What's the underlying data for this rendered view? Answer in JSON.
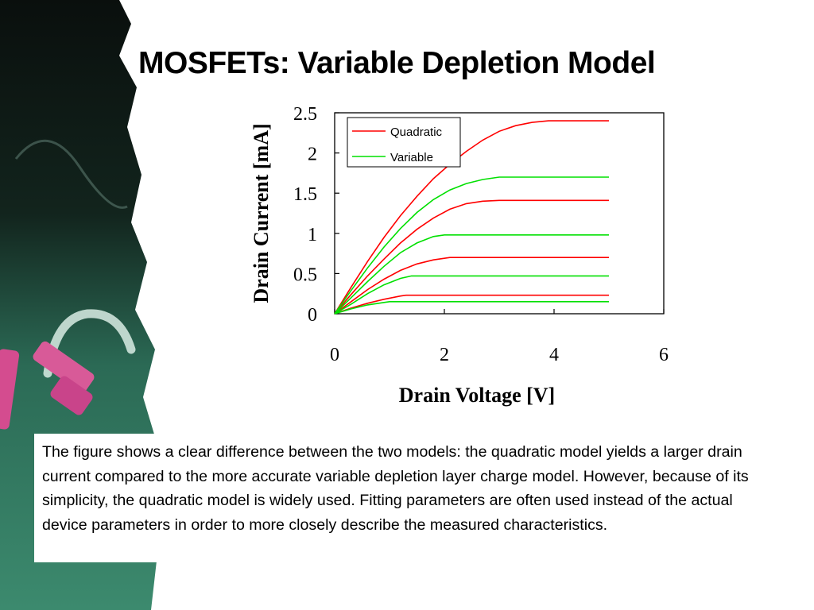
{
  "slide": {
    "title": "MOSFETs: Variable Depletion Model",
    "caption": "The figure shows a clear difference between the two models: the quadratic model yields a larger drain current compared to the more accurate variable depletion layer charge model. However, because of its simplicity, the quadratic model is widely used. Fitting parameters are often used instead of the actual device parameters in order to more closely describe the measured characteristics."
  },
  "colors": {
    "quadratic": "#ff0000",
    "variable": "#00e000",
    "chalkboard": "#1f5a48",
    "chalk_pink": "#d44c8f"
  },
  "chart_data": {
    "type": "line",
    "xlabel": "Drain Voltage [V]",
    "ylabel": "Drain Current [mA]",
    "xlim": [
      0,
      6
    ],
    "ylim": [
      0,
      2.5
    ],
    "xticks": [
      "0",
      "2",
      "4",
      "6"
    ],
    "yticks": [
      "0",
      "0.5",
      "1",
      "1.5",
      "2",
      "2.5"
    ],
    "legend_position": "top-left",
    "grid": false,
    "series": [
      {
        "name": "Quadratic",
        "color": "#ff0000",
        "curves": [
          {
            "x": [
              0,
              0.3,
              0.6,
              0.9,
              1.2,
              1.5,
              1.8,
              2.1,
              2.4,
              2.7,
              3.0,
              3.3,
              3.6,
              3.9,
              4.0,
              4.5,
              5.0
            ],
            "y": [
              0,
              0.33,
              0.65,
              0.95,
              1.22,
              1.46,
              1.68,
              1.86,
              2.02,
              2.16,
              2.27,
              2.34,
              2.38,
              2.4,
              2.4,
              2.4,
              2.4
            ]
          },
          {
            "x": [
              0,
              0.3,
              0.6,
              0.9,
              1.2,
              1.5,
              1.8,
              2.1,
              2.4,
              2.7,
              3.0,
              3.2,
              4.0,
              5.0
            ],
            "y": [
              0,
              0.24,
              0.47,
              0.68,
              0.88,
              1.05,
              1.19,
              1.3,
              1.37,
              1.4,
              1.41,
              1.41,
              1.41,
              1.41
            ]
          },
          {
            "x": [
              0,
              0.3,
              0.6,
              0.9,
              1.2,
              1.5,
              1.8,
              2.1,
              2.2,
              3.0,
              4.0,
              5.0
            ],
            "y": [
              0,
              0.15,
              0.3,
              0.43,
              0.54,
              0.62,
              0.67,
              0.7,
              0.7,
              0.7,
              0.7,
              0.7
            ]
          },
          {
            "x": [
              0,
              0.3,
              0.6,
              0.9,
              1.2,
              1.3,
              2.0,
              3.0,
              4.0,
              5.0
            ],
            "y": [
              0,
              0.07,
              0.13,
              0.18,
              0.22,
              0.23,
              0.23,
              0.23,
              0.23,
              0.23
            ]
          }
        ]
      },
      {
        "name": "Variable",
        "color": "#00e000",
        "curves": [
          {
            "x": [
              0,
              0.3,
              0.6,
              0.9,
              1.2,
              1.5,
              1.8,
              2.1,
              2.4,
              2.7,
              3.0,
              4.0,
              5.0
            ],
            "y": [
              0,
              0.29,
              0.57,
              0.83,
              1.06,
              1.26,
              1.42,
              1.54,
              1.62,
              1.67,
              1.7,
              1.7,
              1.7
            ]
          },
          {
            "x": [
              0,
              0.3,
              0.6,
              0.9,
              1.2,
              1.5,
              1.8,
              2.0,
              3.0,
              4.0,
              5.0
            ],
            "y": [
              0,
              0.2,
              0.4,
              0.59,
              0.76,
              0.88,
              0.96,
              0.98,
              0.98,
              0.98,
              0.98
            ]
          },
          {
            "x": [
              0,
              0.3,
              0.6,
              0.9,
              1.2,
              1.4,
              2.0,
              3.0,
              4.0,
              5.0
            ],
            "y": [
              0,
              0.12,
              0.25,
              0.36,
              0.44,
              0.47,
              0.47,
              0.47,
              0.47,
              0.47
            ]
          },
          {
            "x": [
              0,
              0.3,
              0.6,
              0.9,
              1.0,
              2.0,
              3.0,
              4.0,
              5.0
            ],
            "y": [
              0,
              0.06,
              0.11,
              0.14,
              0.15,
              0.15,
              0.15,
              0.15,
              0.15
            ]
          }
        ]
      }
    ]
  }
}
